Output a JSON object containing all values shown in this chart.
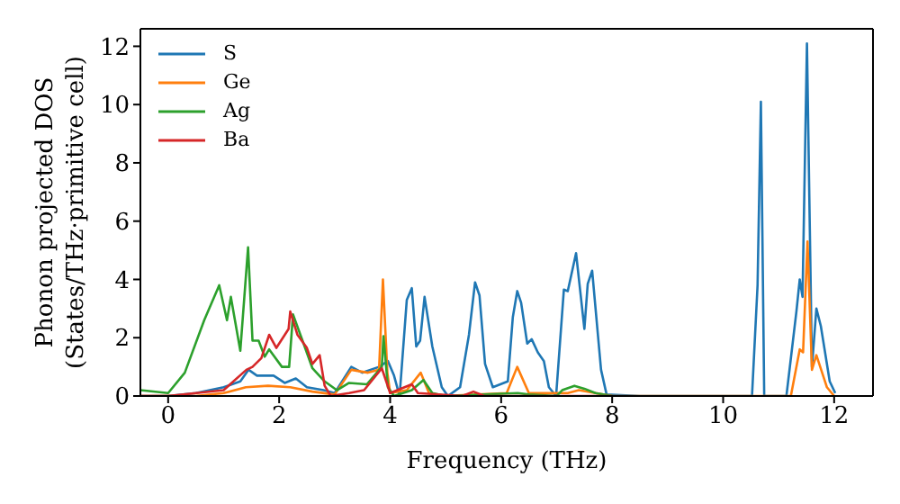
{
  "chart_data": {
    "type": "line",
    "xlabel": "Frequency (THz)",
    "ylabel": "Phonon projected DOS\n(States/THz·primitive cell)",
    "xlim": [
      -0.5,
      12.7
    ],
    "ylim": [
      0,
      12.6
    ],
    "xticks": [
      0,
      2,
      4,
      6,
      8,
      10,
      12
    ],
    "yticks": [
      0,
      2,
      4,
      6,
      8,
      10,
      12
    ],
    "legend": "top left",
    "marker": "none",
    "line_style": "solid",
    "series": [
      {
        "name": "S",
        "color": "#1f77b4",
        "x": [
          -0.5,
          0,
          0.5,
          1.0,
          1.3,
          1.45,
          1.6,
          1.9,
          2.1,
          2.3,
          2.5,
          2.8,
          3.0,
          3.3,
          3.5,
          3.8,
          3.96,
          4.07,
          4.17,
          4.3,
          4.39,
          4.47,
          4.54,
          4.62,
          4.76,
          4.93,
          5.04,
          5.26,
          5.42,
          5.53,
          5.61,
          5.71,
          5.85,
          6.12,
          6.21,
          6.29,
          6.36,
          6.47,
          6.55,
          6.66,
          6.77,
          6.86,
          6.99,
          7.13,
          7.2,
          7.35,
          7.5,
          7.56,
          7.64,
          7.8,
          7.9,
          8.5,
          10.52,
          10.62,
          10.68,
          10.74,
          11.14,
          11.32,
          11.38,
          11.43,
          11.51,
          11.6,
          11.68,
          11.76,
          11.92,
          12.02
        ],
        "values": [
          0,
          0,
          0.1,
          0.3,
          0.5,
          0.9,
          0.7,
          0.7,
          0.45,
          0.6,
          0.3,
          0.2,
          0.1,
          1.0,
          0.8,
          1.0,
          1.2,
          0.7,
          0,
          3.3,
          3.7,
          1.7,
          1.9,
          3.4,
          1.7,
          0.3,
          0,
          0.3,
          2.1,
          3.9,
          3.45,
          1.1,
          0.3,
          0.5,
          2.7,
          3.6,
          3.2,
          1.8,
          1.95,
          1.5,
          1.2,
          0.3,
          0,
          3.65,
          3.6,
          4.9,
          2.3,
          3.85,
          4.3,
          0.9,
          0.05,
          0,
          0,
          3.8,
          10.1,
          0,
          0,
          2.9,
          4.0,
          3.4,
          12.1,
          1.0,
          3.0,
          2.4,
          0.5,
          0.1
        ]
      },
      {
        "name": "Ge",
        "color": "#ff7f0e",
        "x": [
          -0.5,
          0,
          0.5,
          1.0,
          1.4,
          1.8,
          2.2,
          2.6,
          3.0,
          3.3,
          3.6,
          3.8,
          3.87,
          3.95,
          4.0,
          4.3,
          4.55,
          4.7,
          5.0,
          6.1,
          6.29,
          6.5,
          7.2,
          7.4,
          7.7,
          8.0,
          11.22,
          11.38,
          11.44,
          11.52,
          11.6,
          11.68,
          11.87,
          12.0
        ],
        "values": [
          0,
          0,
          0,
          0.1,
          0.3,
          0.35,
          0.3,
          0.15,
          0.05,
          0.9,
          0.8,
          0.9,
          4.0,
          0.8,
          0.1,
          0.2,
          0.8,
          0.1,
          0,
          0.1,
          1.0,
          0.1,
          0.1,
          0.2,
          0.1,
          0,
          0,
          1.6,
          1.5,
          5.3,
          0.9,
          1.4,
          0.3,
          0
        ]
      },
      {
        "name": "Ag",
        "color": "#2ca02c",
        "x": [
          -0.5,
          0,
          0.3,
          0.65,
          0.92,
          1.06,
          1.13,
          1.3,
          1.44,
          1.52,
          1.63,
          1.74,
          1.82,
          2.05,
          2.18,
          2.25,
          2.44,
          2.6,
          2.82,
          3.04,
          3.26,
          3.58,
          3.85,
          3.88,
          3.96,
          4.07,
          4.39,
          4.6,
          4.76,
          5.0,
          6.3,
          6.5,
          7.0,
          7.1,
          7.32,
          7.5,
          7.7,
          8.0
        ],
        "values": [
          0.2,
          0.1,
          0.8,
          2.6,
          3.8,
          2.6,
          3.4,
          1.55,
          5.1,
          1.9,
          1.9,
          1.35,
          1.6,
          1.0,
          1.0,
          2.8,
          1.8,
          0.95,
          0.5,
          0.2,
          0.45,
          0.4,
          1.0,
          2.05,
          0.3,
          0,
          0.2,
          0.55,
          0.1,
          0,
          0.1,
          0.05,
          0,
          0.2,
          0.35,
          0.25,
          0.1,
          0
        ]
      },
      {
        "name": "Ba",
        "color": "#d62728",
        "x": [
          -0.5,
          0,
          1.0,
          1.41,
          1.52,
          1.68,
          1.82,
          1.95,
          2.17,
          2.2,
          2.33,
          2.5,
          2.6,
          2.73,
          2.82,
          2.93,
          3.26,
          3.53,
          3.85,
          4.0,
          4.39,
          4.5,
          5.3,
          5.5,
          5.7,
          8.0
        ],
        "values": [
          0,
          0,
          0.2,
          0.9,
          1.0,
          1.3,
          2.1,
          1.65,
          2.3,
          2.9,
          2.1,
          1.65,
          1.1,
          1.4,
          0.35,
          0,
          0.1,
          0.2,
          0.95,
          0.1,
          0.4,
          0.1,
          0,
          0.15,
          0,
          0
        ]
      }
    ]
  }
}
